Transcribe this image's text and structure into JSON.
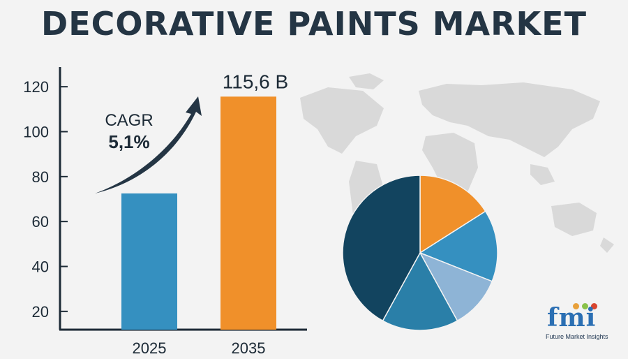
{
  "title": "DECORATIVE PAINTS MARKET",
  "colors": {
    "title": "#243544",
    "bar_2025": "#3590c0",
    "bar_2035": "#f0902a",
    "axis": "#1c2a36",
    "map": "#d9d9d9"
  },
  "chart_data": [
    {
      "type": "bar",
      "categories": [
        "2025",
        "2035"
      ],
      "values": [
        72.5,
        115.6
      ],
      "bar_colors": [
        "#3590c0",
        "#f0902a"
      ],
      "yticks": [
        "20",
        "40",
        "60",
        "80",
        "100",
        "120"
      ],
      "ylim": [
        10,
        130
      ],
      "data_label": "115,6 B",
      "annotation": {
        "line1": "CAGR",
        "line2": "5,1%"
      },
      "grid": false
    },
    {
      "type": "pie",
      "slices": [
        {
          "value": 16,
          "color": "#f0902a"
        },
        {
          "value": 15,
          "color": "#3590c0"
        },
        {
          "value": 11,
          "color": "#8eb4d6"
        },
        {
          "value": 16,
          "color": "#2a7fa8"
        },
        {
          "value": 42,
          "color": "#12445f"
        }
      ]
    }
  ],
  "logo": {
    "mark": "fmi",
    "caption": "Future Market Insights",
    "dot_colors": [
      "#e8a03a",
      "#8ac24a",
      "#d9462f"
    ]
  }
}
